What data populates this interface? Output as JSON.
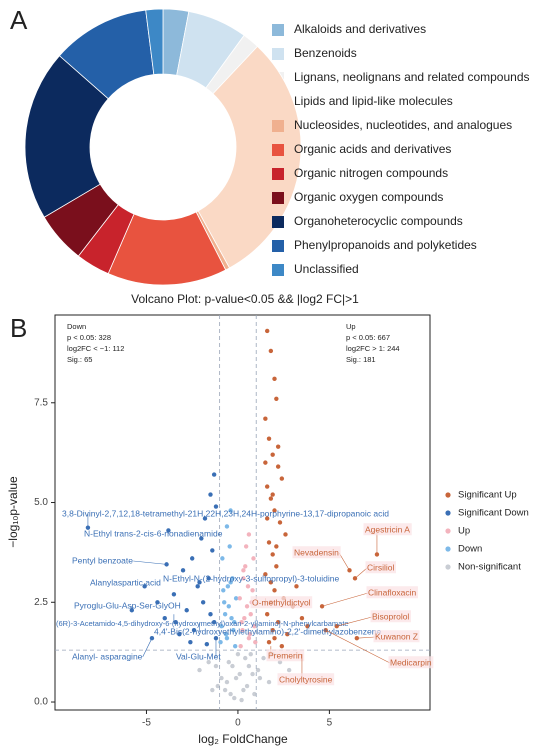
{
  "chart_data": [
    {
      "type": "donut",
      "panel_label": "A",
      "categories": [
        "Alkaloids and derivatives",
        "Benzenoids",
        "Lignans, neolignans and related compounds",
        "Lipids and lipid-like molecules",
        "Nucleosides, nucleotides, and analogues",
        "Organic acids and derivatives",
        "Organic nitrogen compounds",
        "Organic oxygen compounds",
        "Organoheterocyclic compounds",
        "Phenylpropanoids and polyketides",
        "Unclassified"
      ],
      "values": [
        3,
        7,
        2,
        30,
        0.5,
        14,
        4,
        6,
        20,
        11.5,
        2
      ],
      "colors": [
        "#8db9da",
        "#cfe2f0",
        "#f1f1f1",
        "#fad9c5",
        "#f0b08f",
        "#e8533f",
        "#c8232c",
        "#7a0f1c",
        "#0c2a5e",
        "#2460a8",
        "#3d88c6"
      ]
    },
    {
      "type": "scatter",
      "title": "Volcano Plot: p-value<0.05 && |log2 FC|>1",
      "panel_label": "B",
      "xlabel": "log₂ FoldChange",
      "ylabel": "−log₁₀p-value",
      "xlim": [
        -10,
        10.5
      ],
      "ylim": [
        -0.2,
        9.7
      ],
      "xticks": [
        -5,
        0,
        5
      ],
      "yticks": [
        {
          "value": 0,
          "label": "0.0"
        },
        {
          "value": 2.5,
          "label": "2.5"
        },
        {
          "value": 5,
          "label": "5.0"
        },
        {
          "value": 7.5,
          "label": "7.5"
        }
      ],
      "vlines": [
        -1,
        1
      ],
      "hline": 1.3,
      "corner_left": [
        "Down",
        "p < 0.05: 328",
        "log2FC < −1: 112",
        "Sig.: 65"
      ],
      "corner_right": [
        "Up",
        "p < 0.05: 667",
        "log2FC > 1: 244",
        "Sig.: 181"
      ],
      "series": [
        {
          "name": "Significant Up",
          "color": "#c8653a",
          "x": [
            1.6,
            1.8,
            2.0,
            2.1,
            1.5,
            1.7,
            1.9,
            2.2,
            2.4,
            1.6,
            1.8,
            2.0,
            2.3,
            2.6,
            1.7,
            1.9,
            2.1,
            1.5,
            1.8,
            2.0,
            2.5,
            3.0,
            1.6,
            2.2,
            1.9,
            2.7,
            3.5,
            1.7,
            2.0,
            2.4,
            1.8,
            1.6,
            2.1,
            4.6,
            5.4,
            6.1,
            6.4,
            7.6,
            6.5,
            4.8,
            3.2,
            1.5,
            2.2,
            1.9,
            3.8
          ],
          "values": [
            9.3,
            8.8,
            8.1,
            7.6,
            7.1,
            6.6,
            6.2,
            5.9,
            5.6,
            5.4,
            5.1,
            4.8,
            4.5,
            4.2,
            4.0,
            3.7,
            3.4,
            3.2,
            3.0,
            2.8,
            2.6,
            2.4,
            2.2,
            2.0,
            1.8,
            1.7,
            2.1,
            1.5,
            1.6,
            1.4,
            2.5,
            4.6,
            3.9,
            2.4,
            1.9,
            3.3,
            3.1,
            3.7,
            1.6,
            1.8,
            2.9,
            6.0,
            6.4,
            5.2,
            1.9
          ]
        },
        {
          "name": "Significant Down",
          "color": "#3a6fb5",
          "x": [
            -1.3,
            -1.5,
            -1.2,
            -1.8,
            -2.0,
            -1.4,
            -2.5,
            -3.0,
            -1.6,
            -2.2,
            -3.5,
            -1.9,
            -2.8,
            -4.0,
            -1.3,
            -2.4,
            -3.2,
            -5.1,
            -5.8,
            -4.7,
            -3.9,
            -8.2,
            -3.8,
            -1.2,
            -2.6,
            -1.7,
            -3.4,
            -2.1,
            -1.5,
            -4.4
          ],
          "values": [
            5.7,
            5.2,
            4.9,
            4.6,
            4.1,
            3.8,
            3.6,
            3.3,
            3.1,
            2.9,
            2.7,
            2.5,
            2.3,
            2.1,
            2.0,
            1.8,
            1.7,
            2.9,
            2.3,
            1.6,
            3.45,
            4.37,
            4.3,
            1.6,
            1.5,
            1.45,
            2.0,
            3.0,
            2.2,
            2.5
          ]
        },
        {
          "name": "Up",
          "color": "#f3b3bd",
          "x": [
            0.2,
            0.5,
            0.8,
            0.3,
            0.6,
            0.9,
            0.1,
            0.4,
            0.7,
            0.95,
            0.25,
            0.55,
            0.85,
            0.35,
            0.65,
            0.15,
            0.45,
            0.75,
            0.3,
            0.6
          ],
          "values": [
            2.0,
            2.4,
            2.8,
            3.1,
            1.6,
            1.9,
            2.6,
            3.4,
            2.2,
            1.5,
            1.8,
            2.9,
            3.6,
            2.1,
            1.7,
            1.4,
            3.9,
            2.5,
            3.3,
            4.2
          ]
        },
        {
          "name": "Down",
          "color": "#7db9e8",
          "x": [
            -0.2,
            -0.5,
            -0.8,
            -0.3,
            -0.6,
            -0.9,
            -0.1,
            -0.4,
            -0.7,
            -0.95,
            -0.25,
            -0.55,
            -0.85,
            -0.35,
            -0.65,
            -0.15,
            -0.45,
            -0.75,
            -0.4,
            -0.6
          ],
          "values": [
            2.0,
            2.4,
            2.8,
            3.1,
            1.6,
            1.9,
            2.6,
            3.0,
            2.2,
            1.5,
            1.8,
            2.9,
            3.6,
            2.1,
            1.7,
            1.4,
            3.9,
            2.5,
            4.8,
            4.4
          ]
        },
        {
          "name": "Non-significant",
          "color": "#c9cdd4",
          "x": [
            -0.2,
            0.3,
            -0.6,
            0.8,
            -1.2,
            1.4,
            0.0,
            -0.4,
            0.5,
            -0.9,
            1.1,
            -1.6,
            1.9,
            0.2,
            -0.1,
            0.6,
            -0.7,
            1.7,
            -2.1,
            2.3,
            0.4,
            -0.3,
            0.9,
            -1.1,
            1.2,
            0.1,
            -0.5,
            0.7,
            -1.4,
            2.8
          ],
          "values": [
            0.1,
            0.3,
            0.5,
            0.7,
            0.9,
            1.1,
            1.2,
            0.2,
            0.4,
            0.6,
            0.8,
            1.0,
            1.2,
            0.05,
            0.6,
            0.9,
            0.3,
            0.5,
            0.8,
            1.0,
            1.1,
            0.9,
            0.2,
            0.4,
            0.6,
            0.7,
            1.0,
            1.2,
            0.3,
            0.8
          ]
        }
      ],
      "annotations_down": [
        {
          "text": "3,8-Divinyl-2,7,12,18-tetramethyl-21H,22H,23H,24H-porphyrine-13,17-dipropanoic acid",
          "x": -8.2,
          "y": 4.37
        },
        {
          "text": "N-Ethyl trans-2-cis-6-nonadienamide",
          "x": -3.8,
          "y": 4.3
        },
        {
          "text": "Pentyl benzoate",
          "x": -3.9,
          "y": 3.45
        },
        {
          "text": "N-Ethyl-N-(2-hydroxy-3-sulfopropyl)-3-toluidine",
          "x": -0.4,
          "y": 3.0
        },
        {
          "text": "Alanylaspartic acid",
          "x": -5.1,
          "y": 2.9
        },
        {
          "text": "Pyroglu-Glu-Asp-Ser-GlyOH",
          "x": -5.8,
          "y": 2.3
        },
        {
          "text": "(6R)-3-Acetamido-4,5-dihydroxy-6-(hydroxymethyl)oxan-2-yl]amino]-N-phenylcarbamate",
          "x": -3.5,
          "y": 2.2
        },
        {
          "text": "4,4'-Bis(2-hydroxyethylethylamino)-2,2'-dimethylazobenzene",
          "x": -2.1,
          "y": 2.0
        },
        {
          "text": "Alanyl- asparagine",
          "x": -4.7,
          "y": 1.6
        },
        {
          "text": "Val-Glu-Met",
          "x": -1.2,
          "y": 1.6
        }
      ],
      "annotations_up": [
        {
          "text": "Agestricin A",
          "x": 7.6,
          "y": 3.7
        },
        {
          "text": "Nevadensin",
          "x": 6.1,
          "y": 3.3
        },
        {
          "text": "Cirsiliol",
          "x": 6.4,
          "y": 3.1
        },
        {
          "text": "Clinafloxacin",
          "x": 4.6,
          "y": 2.4
        },
        {
          "text": "O-methyldictyol",
          "x": 1.5,
          "y": 2.6
        },
        {
          "text": "Bisoprolol",
          "x": 5.4,
          "y": 1.9
        },
        {
          "text": "Kuwanon Z",
          "x": 6.5,
          "y": 1.6
        },
        {
          "text": "Premerin",
          "x": 1.8,
          "y": 1.4
        },
        {
          "text": "Medicarpin",
          "x": 4.8,
          "y": 1.8
        },
        {
          "text": "Cholyltyrosine",
          "x": 3.5,
          "y": 1.2
        }
      ]
    }
  ]
}
